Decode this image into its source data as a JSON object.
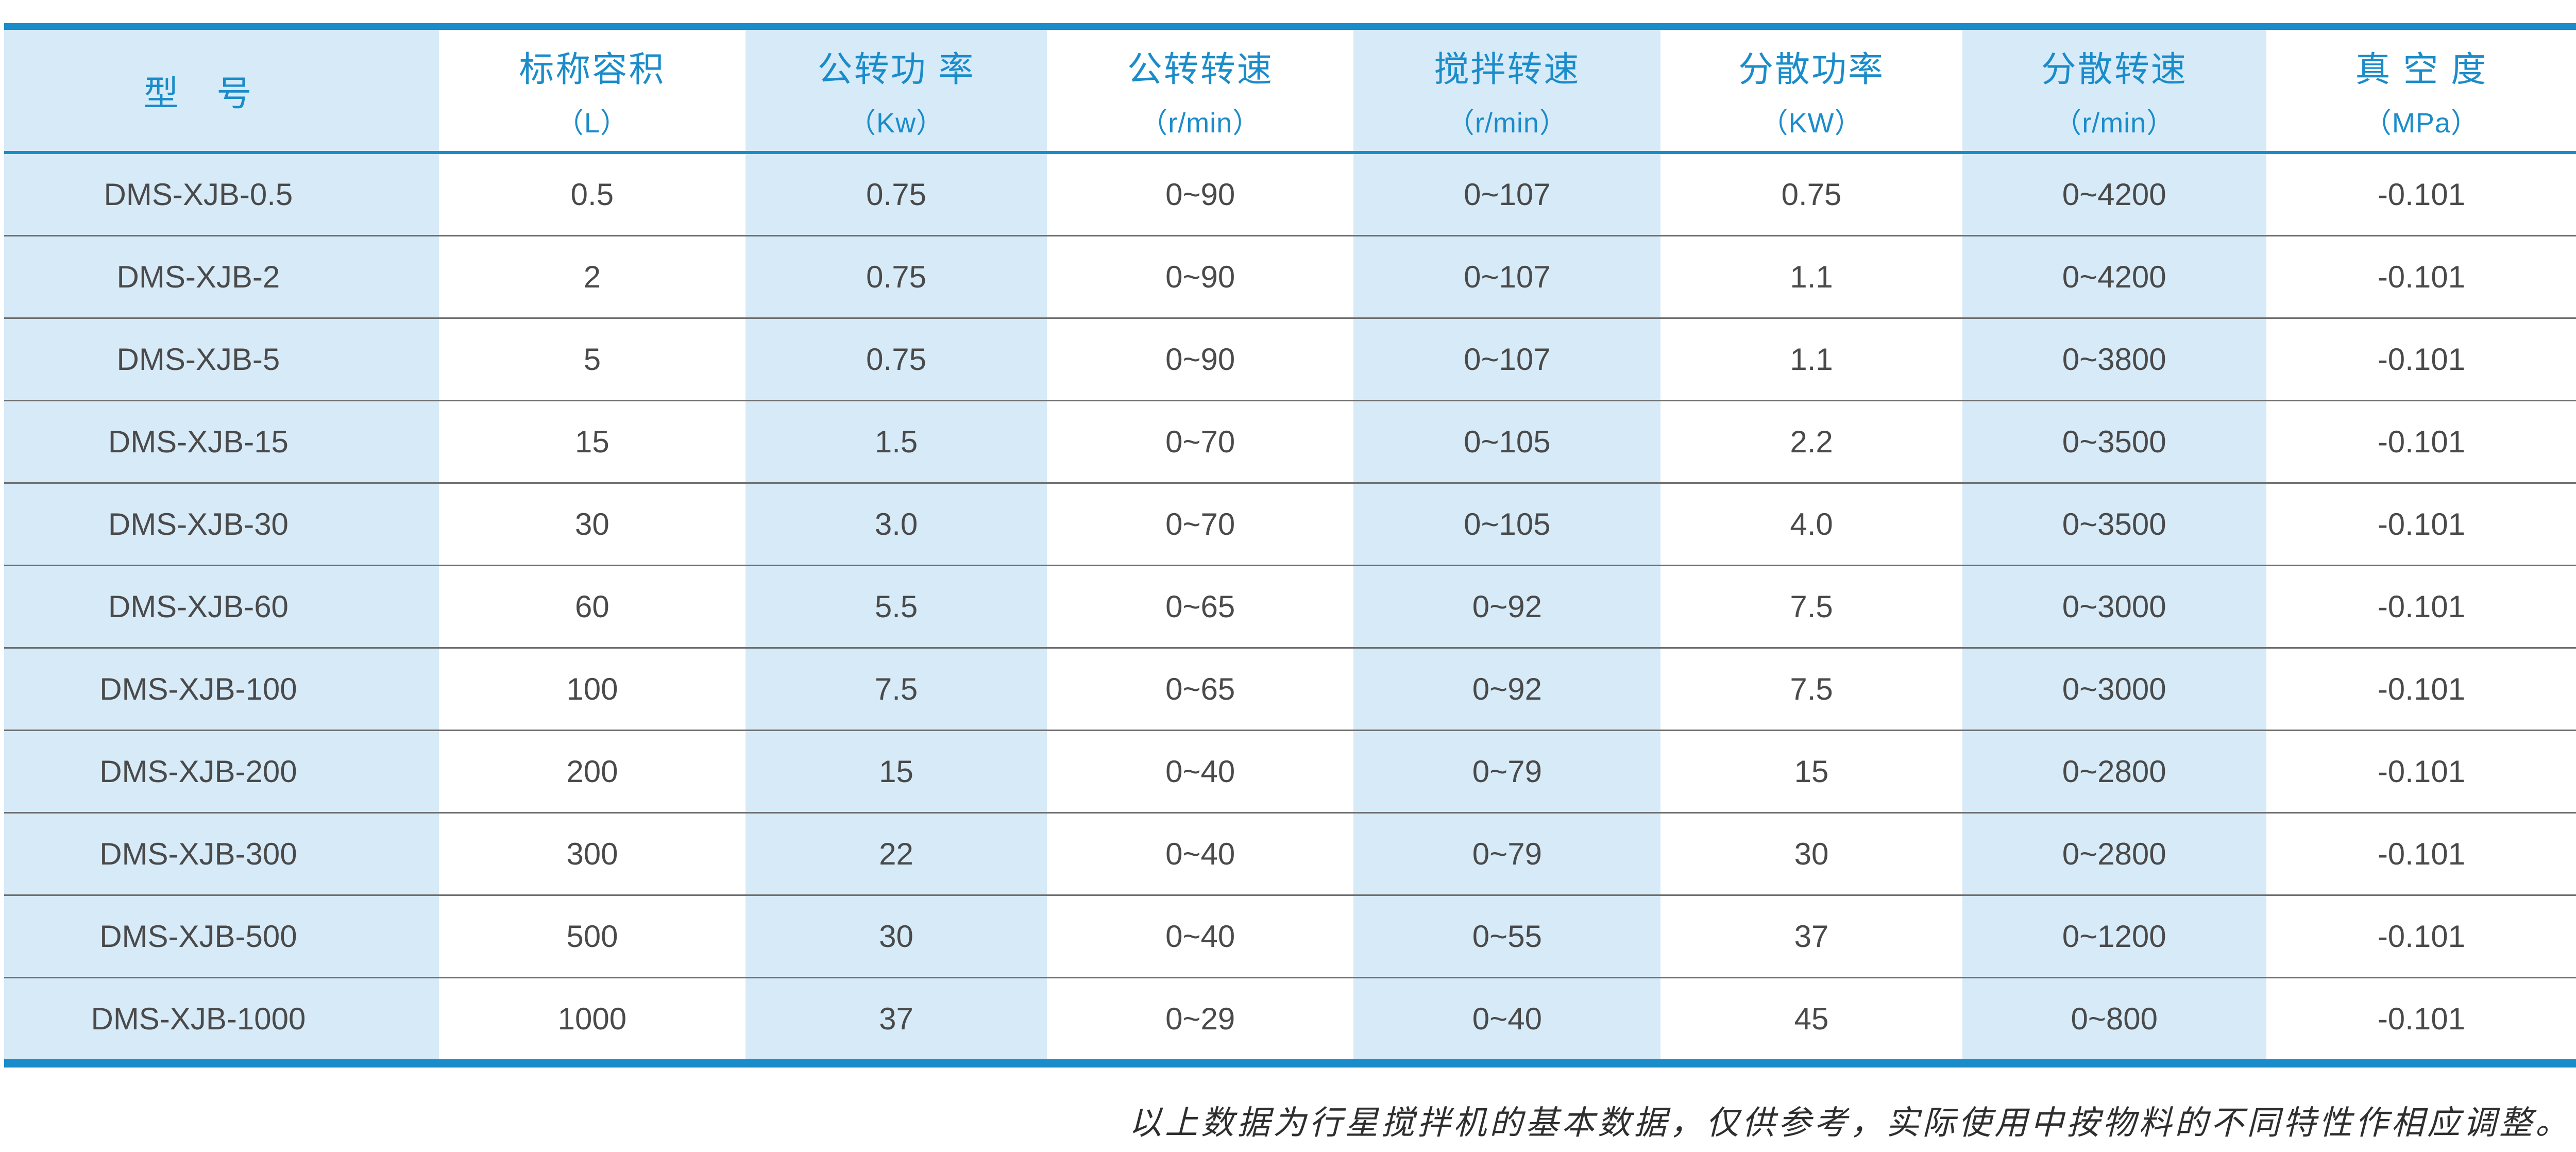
{
  "table": {
    "columns": [
      {
        "title": "型　号",
        "unit": ""
      },
      {
        "title": "标称容积",
        "unit": "（L）"
      },
      {
        "title": "公转功 率",
        "unit": "（Kw）"
      },
      {
        "title": "公转转速",
        "unit": "（r/min）"
      },
      {
        "title": "搅拌转速",
        "unit": "（r/min）"
      },
      {
        "title": "分散功率",
        "unit": "（KW）"
      },
      {
        "title": "分散转速",
        "unit": "（r/min）"
      },
      {
        "title": "真 空 度",
        "unit": "（MPa）"
      }
    ],
    "rows": [
      [
        "DMS-XJB-0.5",
        "0.5",
        "0.75",
        "0~90",
        "0~107",
        "0.75",
        "0~4200",
        "-0.101"
      ],
      [
        "DMS-XJB-2",
        "2",
        "0.75",
        "0~90",
        "0~107",
        "1.1",
        "0~4200",
        "-0.101"
      ],
      [
        "DMS-XJB-5",
        "5",
        "0.75",
        "0~90",
        "0~107",
        "1.1",
        "0~3800",
        "-0.101"
      ],
      [
        "DMS-XJB-15",
        "15",
        "1.5",
        "0~70",
        "0~105",
        "2.2",
        "0~3500",
        "-0.101"
      ],
      [
        "DMS-XJB-30",
        "30",
        "3.0",
        "0~70",
        "0~105",
        "4.0",
        "0~3500",
        "-0.101"
      ],
      [
        "DMS-XJB-60",
        "60",
        "5.5",
        "0~65",
        "0~92",
        "7.5",
        "0~3000",
        "-0.101"
      ],
      [
        "DMS-XJB-100",
        "100",
        "7.5",
        "0~65",
        "0~92",
        "7.5",
        "0~3000",
        "-0.101"
      ],
      [
        "DMS-XJB-200",
        "200",
        "15",
        "0~40",
        "0~79",
        "15",
        "0~2800",
        "-0.101"
      ],
      [
        "DMS-XJB-300",
        "300",
        "22",
        "0~40",
        "0~79",
        "30",
        "0~2800",
        "-0.101"
      ],
      [
        "DMS-XJB-500",
        "500",
        "30",
        "0~40",
        "0~55",
        "37",
        "0~1200",
        "-0.101"
      ],
      [
        "DMS-XJB-1000",
        "1000",
        "37",
        "0~29",
        "0~40",
        "45",
        "0~800",
        "-0.101"
      ]
    ]
  },
  "footer": {
    "note": "以上数据为行星搅拌机的基本数据，仅供参考，实际使用中按物料的不同特性作相应调整。"
  },
  "colors": {
    "accent": "#1b8cca",
    "lightBlue": "#d7eaf8",
    "rowLine": "#6f6f6f",
    "textDark": "#4a4a4a",
    "footerText": "#2e2e2e"
  }
}
